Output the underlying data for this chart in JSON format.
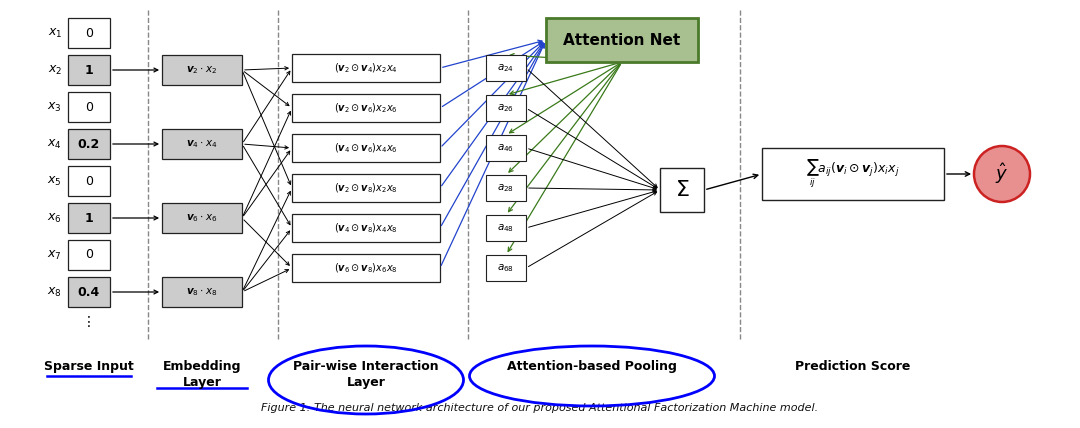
{
  "fig_width": 10.8,
  "fig_height": 4.28,
  "dpi": 100,
  "bg_color": "#ffffff",
  "caption": "Figure 1: The neural network architecture of our proposed Attentional Factorization Machine model.",
  "sparse_input_values": [
    "0",
    "1",
    "0",
    "0.2",
    "0",
    "1",
    "0",
    "0.4"
  ],
  "sparse_active": [
    1,
    3,
    5,
    7
  ],
  "attention_net_label": "Attention Net",
  "attention_net_color": "#a8c090",
  "attention_net_edge": "#4a7a2a",
  "sparse_input_section": "Sparse Input",
  "embedding_section": "Embedding\nLayer",
  "pairwise_section": "Pair-wise Interaction\nLayer",
  "attention_section": "Attention-based Pooling",
  "prediction_section": "Prediction Score",
  "blue_arrow_color": "#2244cc",
  "green_arrow_color": "#3a7a1a",
  "dashed_line_color": "#888888",
  "box_gray": "#cccccc",
  "box_white": "#ffffff",
  "box_edge": "#222222",
  "output_circle_color": "#e89090",
  "output_circle_edge": "#cc2222"
}
